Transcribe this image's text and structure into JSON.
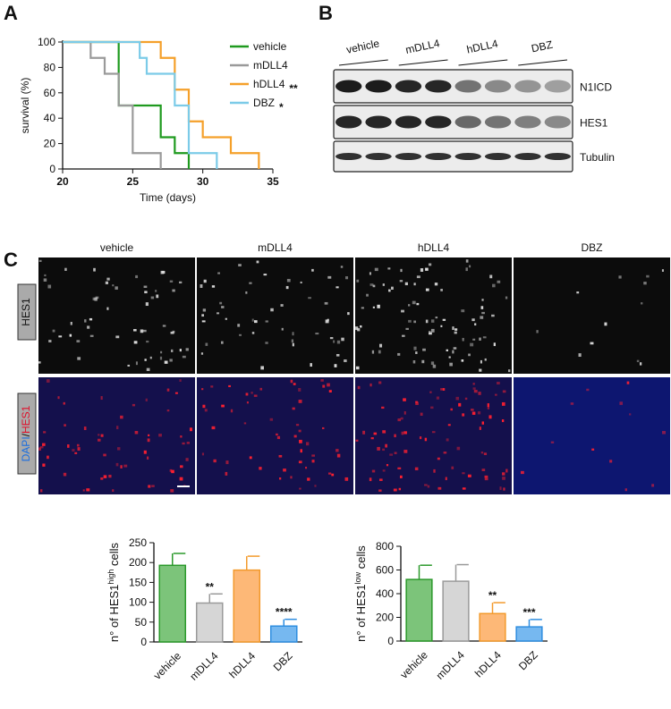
{
  "panels": {
    "a": "A",
    "b": "B",
    "c": "C"
  },
  "blot": {
    "groups": [
      "vehicle",
      "mDLL4",
      "hDLL4",
      "DBZ"
    ],
    "rows": [
      "N1ICD",
      "HES1",
      "Tubulin"
    ]
  },
  "micrographs": {
    "columns": [
      "vehicle",
      "mDLL4",
      "hDLL4",
      "DBZ"
    ],
    "row1": "HES1",
    "row2_parts": [
      "DAPI",
      "/",
      "HES1"
    ]
  },
  "chart_data": [
    {
      "type": "line",
      "xlabel": "Time (days)",
      "ylabel": "survival (%)",
      "xlim": [
        20,
        35
      ],
      "xticks": [
        20,
        25,
        30,
        35
      ],
      "ylim": [
        0,
        100
      ],
      "yticks": [
        0,
        20,
        40,
        60,
        80,
        100
      ],
      "series": [
        {
          "name": "vehicle",
          "color": "#1f9a1f",
          "x": [
            20,
            24,
            24,
            27,
            27,
            28,
            28,
            29,
            29
          ],
          "values": [
            100,
            100,
            50,
            50,
            25,
            25,
            12.5,
            12.5,
            0
          ]
        },
        {
          "name": "mDLL4",
          "color": "#9a9a9a",
          "x": [
            20,
            22,
            22,
            23,
            23,
            24,
            24,
            25,
            25,
            27,
            27
          ],
          "values": [
            100,
            100,
            87.5,
            87.5,
            75,
            75,
            50,
            50,
            12.5,
            12.5,
            0
          ]
        },
        {
          "name": "hDLL4",
          "color": "#f5a02a",
          "annotation": "**",
          "x": [
            20,
            27,
            27,
            28,
            28,
            29,
            29,
            30,
            30,
            32,
            32,
            34,
            34
          ],
          "values": [
            100,
            100,
            87.5,
            87.5,
            62.5,
            62.5,
            37.5,
            37.5,
            25,
            25,
            12.5,
            12.5,
            0
          ]
        },
        {
          "name": "DBZ",
          "color": "#7ccbe8",
          "annotation": "*",
          "x": [
            20,
            25.5,
            25.5,
            26,
            26,
            28,
            28,
            29,
            29,
            31,
            31
          ],
          "values": [
            100,
            100,
            87.5,
            87.5,
            75,
            75,
            50,
            50,
            12.5,
            12.5,
            0
          ]
        }
      ]
    },
    {
      "type": "bar",
      "ylabel_parts": [
        "n° of HES1",
        "high",
        " cells"
      ],
      "categories": [
        "vehicle",
        "mDLL4",
        "hDLL4",
        "DBZ"
      ],
      "values": [
        193,
        98,
        181,
        40
      ],
      "errors": [
        30,
        23,
        35,
        17
      ],
      "annotations": [
        null,
        "**",
        null,
        "****"
      ],
      "colors": [
        "#7cc47a",
        "#d6d6d6",
        "#fdb877",
        "#76b8f0"
      ],
      "edge_colors": [
        "#2b992b",
        "#9a9a9a",
        "#f39a2c",
        "#2f8ee0"
      ],
      "ylim": [
        0,
        250
      ],
      "yticks": [
        0,
        50,
        100,
        150,
        200,
        250
      ]
    },
    {
      "type": "bar",
      "ylabel_parts": [
        "n° of HES1",
        "low",
        " cells"
      ],
      "categories": [
        "vehicle",
        "mDLL4",
        "hDLL4",
        "DBZ"
      ],
      "values": [
        520,
        505,
        232,
        120
      ],
      "errors": [
        120,
        140,
        92,
        62
      ],
      "annotations": [
        null,
        null,
        "**",
        "***"
      ],
      "colors": [
        "#7cc47a",
        "#d6d6d6",
        "#fdb877",
        "#76b8f0"
      ],
      "edge_colors": [
        "#2b992b",
        "#9a9a9a",
        "#f39a2c",
        "#2f8ee0"
      ],
      "ylim": [
        0,
        800
      ],
      "yticks": [
        0,
        200,
        400,
        600,
        800
      ]
    }
  ]
}
